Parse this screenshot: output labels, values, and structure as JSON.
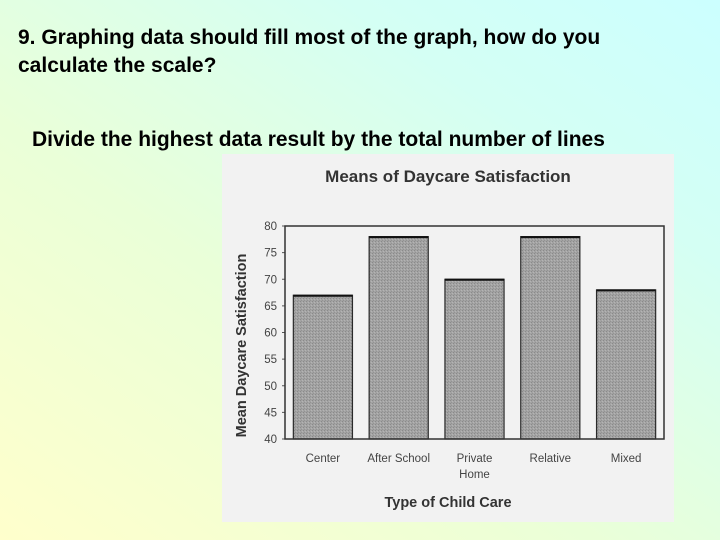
{
  "question": "9. Graphing data should fill most of the graph, how do you\ncalculate the scale?",
  "answer": "Divide the highest data result by the total number of lines",
  "chart_data": {
    "type": "bar",
    "title": "Means of Daycare Satisfaction",
    "xlabel": "Type of Child Care",
    "ylabel": "Mean Daycare Satisfaction",
    "categories": [
      [
        "Center"
      ],
      [
        "After School"
      ],
      [
        "Private",
        "Home"
      ],
      [
        "Relative"
      ],
      [
        "Mixed"
      ]
    ],
    "values": [
      67,
      78,
      70,
      78,
      68
    ],
    "ylim": [
      40,
      80
    ],
    "yticks": [
      "40",
      "45",
      "50",
      "55",
      "60",
      "65",
      "70",
      "75",
      "80"
    ],
    "grid": false,
    "bar_color": "#9c9c9c"
  }
}
